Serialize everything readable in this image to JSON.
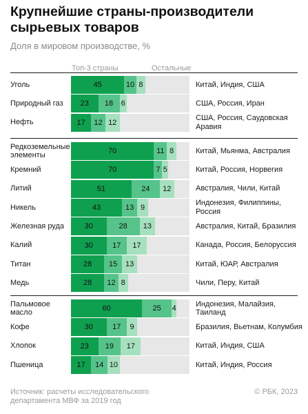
{
  "chart_data": {
    "type": "bar",
    "stacked": true,
    "title": "Крупнейшие страны-производители сырьевых товаров",
    "subtitle": "Доля в мировом производстве, %",
    "legend": {
      "top3": "Топ-3 страны",
      "rest": "Остальные"
    },
    "xlim": [
      0,
      100
    ],
    "groups": [
      {
        "items": [
          {
            "name": "Уголь",
            "values": [
              45,
              10,
              8
            ],
            "countries": "Китай, Индия, США"
          },
          {
            "name": "Природный газ",
            "values": [
              23,
              18,
              6
            ],
            "countries": "США, Россия, Иран"
          },
          {
            "name": "Нефть",
            "values": [
              17,
              12,
              12
            ],
            "countries": "США, Россия, Саудовская Аравия"
          }
        ]
      },
      {
        "items": [
          {
            "name": "Редкоземельные элементы",
            "values": [
              70,
              11,
              8
            ],
            "countries": "Китай, Мьянма, Австралия"
          },
          {
            "name": "Кремний",
            "values": [
              70,
              7,
              5
            ],
            "countries": "Китай, Россия, Норвегия"
          },
          {
            "name": "Литий",
            "values": [
              51,
              24,
              12
            ],
            "countries": "Австралия, Чили, Китай"
          },
          {
            "name": "Никель",
            "values": [
              43,
              13,
              9
            ],
            "countries": "Индонезия, Филиппины, Россия"
          },
          {
            "name": "Железная руда",
            "values": [
              30,
              28,
              13
            ],
            "countries": "Австралия, Китай, Бразилия"
          },
          {
            "name": "Калий",
            "values": [
              30,
              17,
              17
            ],
            "countries": "Канада, Россия, Белоруссия"
          },
          {
            "name": "Титан",
            "values": [
              28,
              15,
              13
            ],
            "countries": "Китай, ЮАР, Австралия"
          },
          {
            "name": "Медь",
            "values": [
              28,
              12,
              8
            ],
            "countries": "Чили, Перу, Китай"
          }
        ]
      },
      {
        "items": [
          {
            "name": "Пальмовое масло",
            "values": [
              60,
              25,
              4
            ],
            "countries": "Индонезия, Малайзия, Таиланд"
          },
          {
            "name": "Кофе",
            "values": [
              30,
              17,
              9
            ],
            "countries": "Бразилия, Вьетнам, Колумбия"
          },
          {
            "name": "Хлопок",
            "values": [
              23,
              19,
              17
            ],
            "countries": "Китай, Индия, США"
          },
          {
            "name": "Пшеница",
            "values": [
              17,
              14,
              10
            ],
            "countries": "Китай, Индия, Россия"
          }
        ]
      }
    ],
    "colors": [
      "#0fa04f",
      "#56c38a",
      "#a6e0bf",
      "#e7e7e7"
    ]
  },
  "footer": {
    "source": "Источник: расчеты исследовательского департамента МВФ за 2019 год",
    "copyright": "© РБК, 2023"
  }
}
